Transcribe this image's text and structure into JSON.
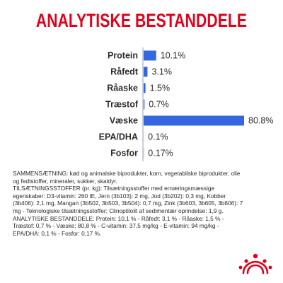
{
  "title": "ANALYTISKE BESTANDDELE",
  "colors": {
    "title": "#e2001a",
    "bar": "#3467e0",
    "logo": "#e2001a",
    "axis": "#9aa0b0"
  },
  "chart_data": {
    "type": "bar",
    "orientation": "horizontal",
    "categories": [
      "Protein",
      "Råfedt",
      "Råaske",
      "Træstof",
      "Væske",
      "EPA/DHA",
      "Fosfor"
    ],
    "values": [
      10.1,
      3.1,
      1.5,
      0.7,
      80.8,
      0.1,
      0.17
    ],
    "labels": [
      "10.1%",
      "3.1%",
      "1.5%",
      "0.7%",
      "80.8%",
      "0.1%",
      "0.17%"
    ],
    "xlim": [
      0,
      80.8
    ]
  },
  "composition": {
    "sammensaetning_label": "SAMMENSÆTNING:",
    "sammensaetning_text": " kød og animalske biprodukter, korn, vegetabilske biprodukter, olie og fedtstoffer, mineraler, sukker, skaldyr.",
    "tilsaetning_label": "TILSÆTNINGSSTOFFER",
    "tilsaetning_text": " (pr. kg): Tilsætningsstoffer med ernæringsmæssige egenskaber: D3-vitamin: 260 IE, Jern (3b103): 2 mg, Jod (3b202): 0,3 mg, Kobber (3b406): 2,1 mg, Mangan (3b502, 3b503, 3b504): 0,7 mg, Zink (3b603, 3b605, 3b606): 7 mg - Teknologiske tilsætningsstoffer: Clinoptilolit af sedimentær oprindelse: 1,9 g.",
    "analytiske_label": "ANALYTISKE BESTANDDELE:",
    "analytiske_text": " Protein: 10,1 % - Råfedt: 3,1 % - Råaske: 1,5 % - Træstof: 0,7 % - Væske: 80,8 % - C-vitamin: 37,5 mg/kg - E-vitamin: 94 mg/kg - EPA/DHA: 0,1 % - Fosfor: 0,17 %."
  },
  "logo_icon": "royal-canin-crown-icon"
}
